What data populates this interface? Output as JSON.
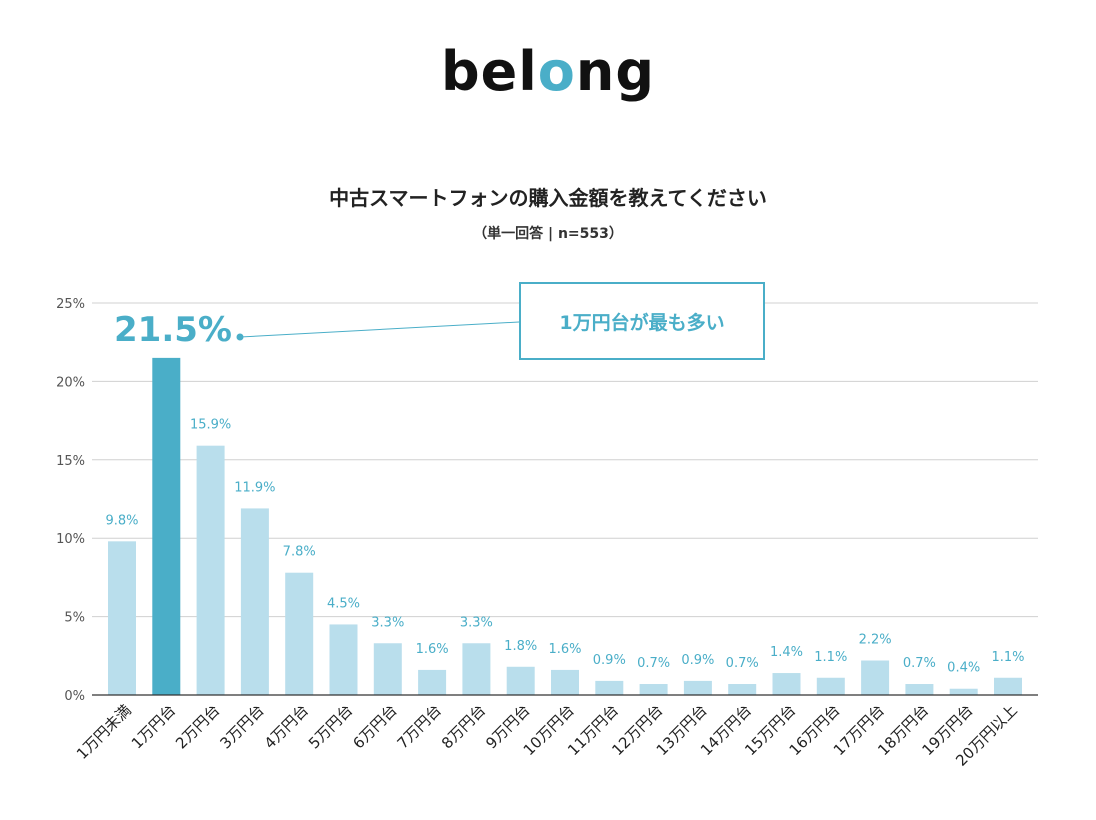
{
  "logo": {
    "text_pre": "bel",
    "text_o": "o",
    "text_post": "ng",
    "accent": "#4aaec8"
  },
  "title": "中古スマートフォンの購入金額を教えてください",
  "subtitle": "（単一回答 | n=553）",
  "callout": {
    "text": "1万円台が最も多い",
    "highlight_value": "21.5%"
  },
  "chart_data": {
    "type": "bar",
    "categories": [
      "1万円未満",
      "1万円台",
      "2万円台",
      "3万円台",
      "4万円台",
      "5万円台",
      "6万円台",
      "7万円台",
      "8万円台",
      "9万円台",
      "10万円台",
      "11万円台",
      "12万円台",
      "13万円台",
      "14万円台",
      "15万円台",
      "16万円台",
      "17万円台",
      "18万円台",
      "19万円台",
      "20万円以上"
    ],
    "values": [
      9.8,
      21.5,
      15.9,
      11.9,
      7.8,
      4.5,
      3.3,
      1.6,
      3.3,
      1.8,
      1.6,
      0.9,
      0.7,
      0.9,
      0.7,
      1.4,
      1.1,
      2.2,
      0.7,
      0.4,
      1.1
    ],
    "labels": [
      "9.8%",
      "",
      "15.9%",
      "11.9%",
      "7.8%",
      "4.5%",
      "3.3%",
      "1.6%",
      "3.3%",
      "1.8%",
      "1.6%",
      "0.9%",
      "0.7%",
      "0.9%",
      "0.7%",
      "1.4%",
      "1.1%",
      "2.2%",
      "0.7%",
      "0.4%",
      "1.1%"
    ],
    "highlight_index": 1,
    "ylim": [
      0,
      25
    ],
    "yticks": [
      "0%",
      "5%",
      "10%",
      "15%",
      "20%",
      "25%"
    ],
    "grid": true,
    "colors": {
      "bar": "#b9deec",
      "highlight": "#4aaec8",
      "label": "#4aaec8"
    }
  }
}
